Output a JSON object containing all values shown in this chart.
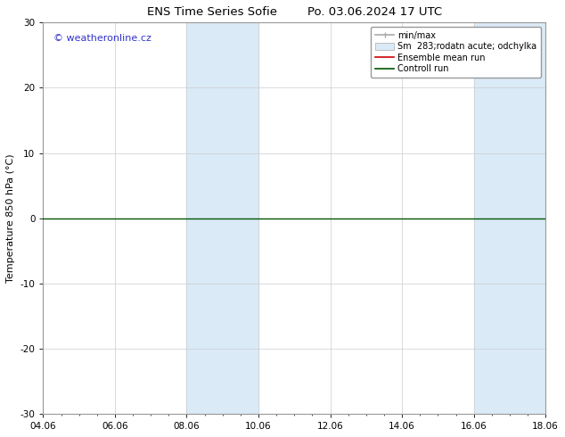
{
  "title": "ENS Time Series Sofie        Po. 03.06.2024 17 UTC",
  "ylabel": "Temperature 850 hPa (°C)",
  "ylim": [
    -30,
    30
  ],
  "yticks": [
    -30,
    -20,
    -10,
    0,
    10,
    20,
    30
  ],
  "xtick_labels": [
    "04.06",
    "06.06",
    "08.06",
    "10.06",
    "12.06",
    "14.06",
    "16.06",
    "18.06"
  ],
  "xtick_positions": [
    0,
    2,
    4,
    6,
    8,
    10,
    12,
    14
  ],
  "x_min": 0,
  "x_max": 14,
  "shaded_regions": [
    {
      "start": 4.0,
      "end": 6.0
    },
    {
      "start": 12.0,
      "end": 14.0
    }
  ],
  "shaded_color": "#daeaf7",
  "zero_line_color": "#005500",
  "zero_line_value": 0.0,
  "watermark_text": "© weatheronline.cz",
  "watermark_color": "#3333cc",
  "legend_items": [
    {
      "label": "min/max",
      "color": "#aaaaaa",
      "lw": 1.2
    },
    {
      "label": "Sm  283;rodatn acute; odchylka",
      "color": "#daeaf7",
      "lw": 5
    },
    {
      "label": "Ensemble mean run",
      "color": "#cc0000",
      "lw": 1.2
    },
    {
      "label": "Controll run",
      "color": "#005500",
      "lw": 1.2
    }
  ],
  "background_color": "#ffffff",
  "border_color": "#999999",
  "grid_color": "#cccccc",
  "title_fontsize": 9.5,
  "axis_label_fontsize": 8,
  "tick_fontsize": 7.5,
  "legend_fontsize": 7,
  "watermark_fontsize": 8
}
